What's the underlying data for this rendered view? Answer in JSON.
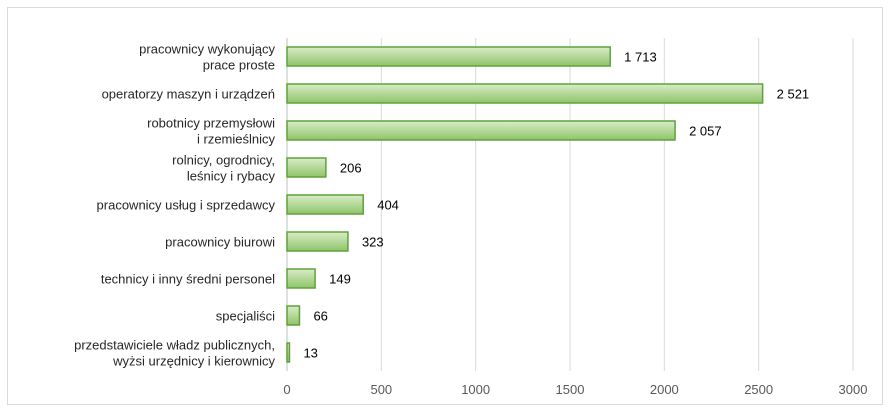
{
  "chart_data": {
    "type": "bar",
    "orientation": "horizontal",
    "categories": [
      [
        "pracownicy wykonujący",
        "prace proste"
      ],
      [
        "operatorzy maszyn i urządzeń"
      ],
      [
        "robotnicy przemysłowi",
        "i rzemieślnicy"
      ],
      [
        "rolnicy, ogrodnicy,",
        "leśnicy i rybacy"
      ],
      [
        "pracownicy usług i sprzedawcy"
      ],
      [
        "pracownicy biurowi"
      ],
      [
        "technicy i inny średni personel"
      ],
      [
        "specjaliści"
      ],
      [
        "przedstawiciele władz publicznych,",
        "wyżsi urzędnicy i kierownicy"
      ]
    ],
    "values": [
      1713,
      2521,
      2057,
      206,
      404,
      323,
      149,
      66,
      13
    ],
    "value_labels": [
      "1 713",
      "2 521",
      "2 057",
      "206",
      "404",
      "323",
      "149",
      "66",
      "13"
    ],
    "xlim": [
      0,
      3000
    ],
    "xticks": [
      0,
      500,
      1000,
      1500,
      2000,
      2500,
      3000
    ],
    "title": "",
    "xlabel": "",
    "ylabel": "",
    "grid": "vertical",
    "legend": "none",
    "colors": {
      "bar_fill_light": "#d9ecc9",
      "bar_fill_dark": "#8fc46a",
      "bar_stroke": "#5ea33a",
      "grid": "#d9d9d9"
    }
  }
}
